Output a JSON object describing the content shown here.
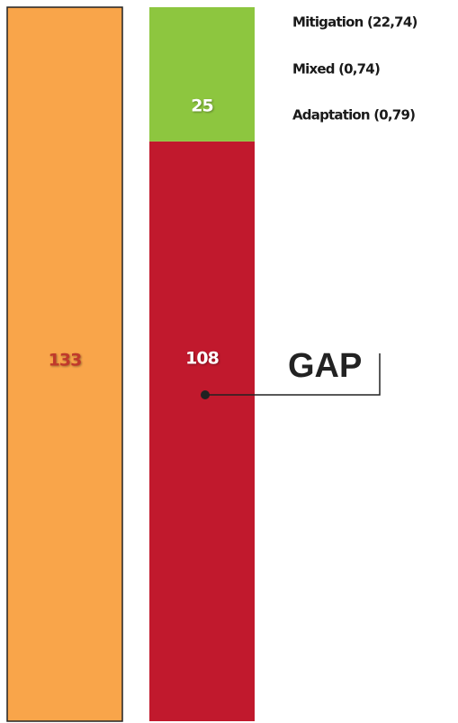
{
  "chart_data": {
    "type": "stacked_bar",
    "bars": [
      {
        "values": [
          133
        ],
        "colors": [
          "#f9a54a"
        ]
      },
      {
        "values": [
          108,
          25
        ],
        "colors": [
          "#c1192d",
          "#8dc63f"
        ]
      }
    ],
    "annotations": [
      "Mitigation (22,74)",
      "Mixed (0,74)",
      "Adaptation (0,79)"
    ],
    "gap_label": "GAP"
  }
}
